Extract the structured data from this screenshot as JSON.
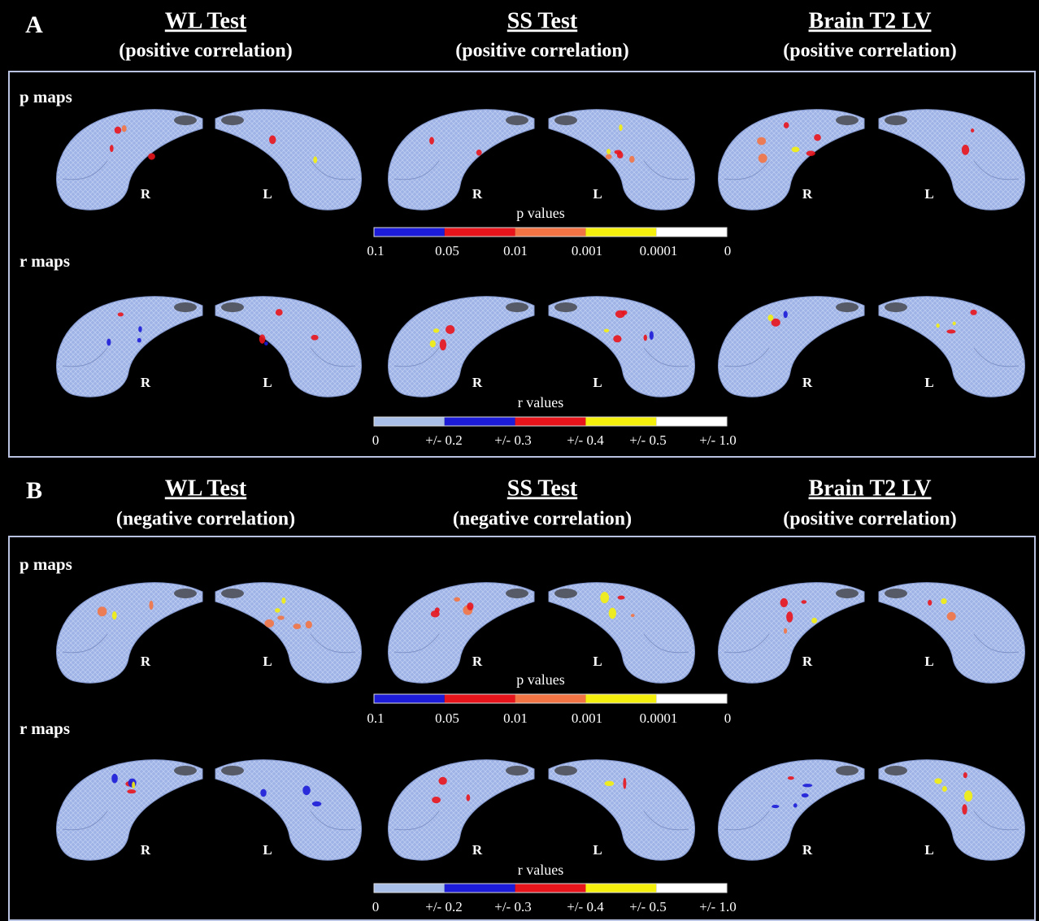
{
  "panels": [
    {
      "label": "A",
      "columns": [
        {
          "title": "WL Test",
          "subtitle": "(positive correlation)"
        },
        {
          "title": "SS Test",
          "subtitle": "(positive correlation)"
        },
        {
          "title": "Brain T2 LV",
          "subtitle": "(positive correlation)"
        }
      ],
      "rows": [
        {
          "label": "p maps"
        },
        {
          "label": "r maps"
        }
      ],
      "hemisphere_labels": [
        "R",
        "L"
      ],
      "legends": [
        {
          "title": "p values",
          "colors": [
            "#1c1cd8",
            "#e8141c",
            "#f27444",
            "#f4ef0c",
            "#ffffff"
          ],
          "ticks": [
            "0.1",
            "0.05",
            "0.01",
            "0.001",
            "0.0001",
            "0"
          ]
        },
        {
          "title": "r values",
          "colors": [
            "#aabfe8",
            "#1c1cd8",
            "#e8141c",
            "#f4ef0c",
            "#ffffff"
          ],
          "ticks": [
            "0",
            "+/- 0.2",
            "+/- 0.3",
            "+/- 0.4",
            "+/- 0.5",
            "+/- 1.0"
          ]
        }
      ]
    },
    {
      "label": "B",
      "columns": [
        {
          "title": "WL Test",
          "subtitle": "(negative correlation)"
        },
        {
          "title": "SS Test",
          "subtitle": "(negative correlation)"
        },
        {
          "title": "Brain T2 LV",
          "subtitle": "(positive correlation)"
        }
      ],
      "rows": [
        {
          "label": "p maps"
        },
        {
          "label": "r maps"
        }
      ],
      "hemisphere_labels": [
        "R",
        "L"
      ],
      "legends": [
        {
          "title": "p values",
          "colors": [
            "#1c1cd8",
            "#e8141c",
            "#f27444",
            "#f4ef0c",
            "#ffffff"
          ],
          "ticks": [
            "0.1",
            "0.05",
            "0.01",
            "0.001",
            "0.0001",
            "0"
          ]
        },
        {
          "title": "r values",
          "colors": [
            "#aabfe8",
            "#1c1cd8",
            "#e8141c",
            "#f4ef0c",
            "#ffffff"
          ],
          "ticks": [
            "0",
            "+/- 0.2",
            "+/- 0.3",
            "+/- 0.4",
            "+/- 0.5",
            "+/- 1.0"
          ]
        }
      ]
    }
  ]
}
